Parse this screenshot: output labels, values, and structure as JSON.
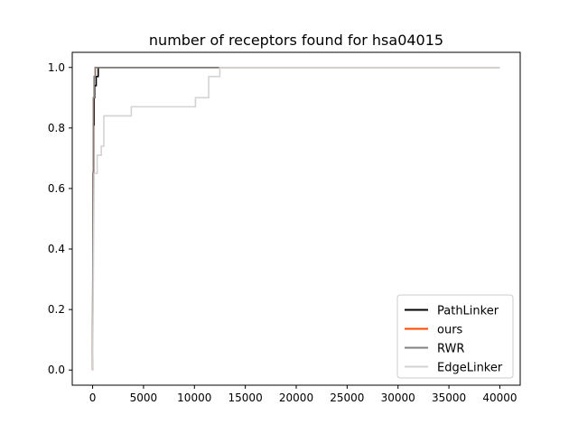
{
  "chart_data": {
    "type": "line",
    "title": "number of receptors found for hsa04015",
    "xlabel": "",
    "ylabel": "",
    "xlim": [
      -2000,
      42000
    ],
    "ylim": [
      -0.05,
      1.05
    ],
    "xticks": [
      0,
      5000,
      10000,
      15000,
      20000,
      25000,
      30000,
      35000,
      40000
    ],
    "xtick_labels": [
      "0",
      "5000",
      "10000",
      "15000",
      "20000",
      "25000",
      "30000",
      "35000",
      "40000"
    ],
    "yticks": [
      0.0,
      0.2,
      0.4,
      0.6,
      0.8,
      1.0
    ],
    "ytick_labels": [
      "0.0",
      "0.2",
      "0.4",
      "0.6",
      "0.8",
      "1.0"
    ],
    "grid": false,
    "legend_position": "lower right",
    "series": [
      {
        "name": "PathLinker",
        "color": "#000000",
        "points": [
          [
            0,
            0.0
          ],
          [
            50,
            0.65
          ],
          [
            100,
            0.65
          ],
          [
            100,
            0.81
          ],
          [
            150,
            0.81
          ],
          [
            150,
            0.9
          ],
          [
            200,
            0.9
          ],
          [
            200,
            0.94
          ],
          [
            350,
            0.94
          ],
          [
            350,
            0.97
          ],
          [
            550,
            0.97
          ],
          [
            550,
            1.0
          ],
          [
            12500,
            1.0
          ]
        ]
      },
      {
        "name": "ours",
        "color": "#ff4500",
        "points": [
          [
            0,
            0.0
          ],
          [
            40,
            0.65
          ],
          [
            80,
            0.65
          ],
          [
            80,
            0.9
          ],
          [
            150,
            0.9
          ],
          [
            150,
            0.97
          ],
          [
            260,
            0.97
          ],
          [
            260,
            1.0
          ],
          [
            40000,
            1.0
          ]
        ]
      },
      {
        "name": "RWR",
        "color": "#808080",
        "points": [
          [
            0,
            0.0
          ],
          [
            40,
            0.65
          ],
          [
            80,
            0.65
          ],
          [
            80,
            0.9
          ],
          [
            150,
            0.9
          ],
          [
            150,
            0.97
          ],
          [
            260,
            0.97
          ],
          [
            260,
            1.0
          ],
          [
            40000,
            1.0
          ]
        ]
      },
      {
        "name": "EdgeLinker",
        "color": "#d3d3d3",
        "points": [
          [
            0,
            0.0
          ],
          [
            150,
            0.65
          ],
          [
            450,
            0.65
          ],
          [
            450,
            0.71
          ],
          [
            850,
            0.71
          ],
          [
            850,
            0.74
          ],
          [
            1100,
            0.74
          ],
          [
            1100,
            0.84
          ],
          [
            3800,
            0.84
          ],
          [
            3800,
            0.87
          ],
          [
            10100,
            0.87
          ],
          [
            10100,
            0.9
          ],
          [
            11400,
            0.9
          ],
          [
            11400,
            0.97
          ],
          [
            12500,
            0.97
          ],
          [
            12500,
            1.0
          ],
          [
            40000,
            1.0
          ]
        ]
      }
    ]
  }
}
